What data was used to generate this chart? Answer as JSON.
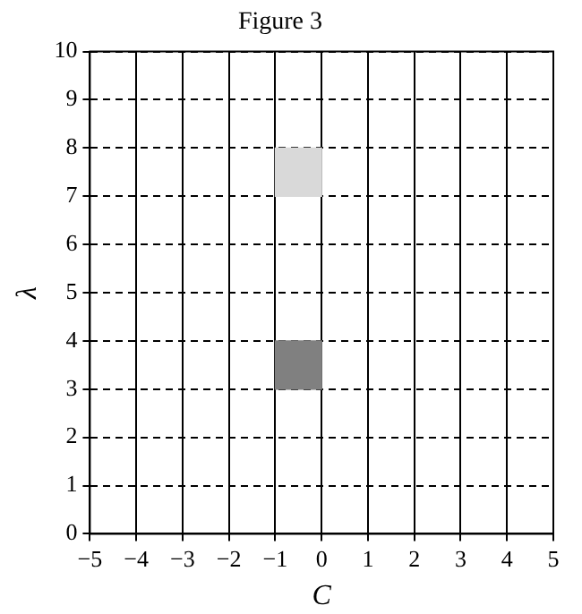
{
  "chart_data": {
    "type": "bar",
    "title": "Figure 3",
    "xlabel": "C",
    "ylabel": "λ",
    "x": [
      -0.5,
      -0.5
    ],
    "base": [
      7,
      3
    ],
    "values": [
      1,
      1
    ],
    "colors": [
      "#d9d9d9",
      "#808080"
    ],
    "xlim": [
      -5,
      5
    ],
    "xticks": [
      {
        "value": -5,
        "label": "−5"
      },
      {
        "value": -4,
        "label": "−4"
      },
      {
        "value": -3,
        "label": "−3"
      },
      {
        "value": -2,
        "label": "−2"
      },
      {
        "value": -1,
        "label": "−1"
      },
      0,
      1,
      2,
      3,
      4,
      5
    ],
    "ylim": [
      0,
      10
    ],
    "yticks": [
      0,
      1,
      2,
      3,
      4,
      5,
      6,
      7,
      8,
      9,
      10
    ],
    "grid": true
  }
}
